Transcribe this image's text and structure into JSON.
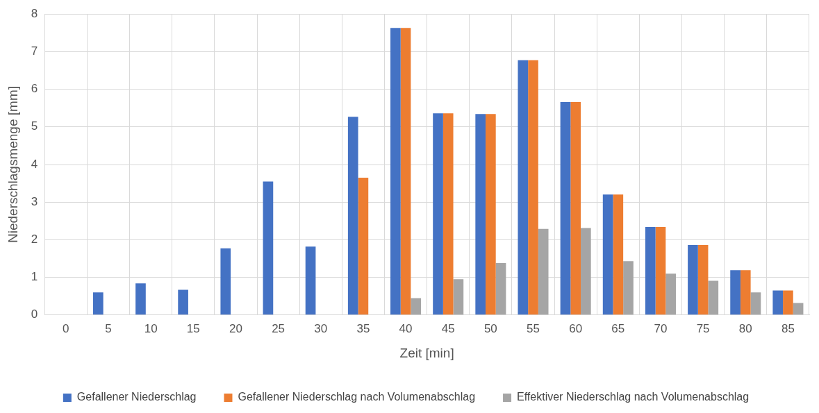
{
  "chart_data": {
    "type": "bar",
    "xlabel": "Zeit [min]",
    "ylabel": "Niederschlagsmenge [mm]",
    "categories": [
      "0",
      "5",
      "10",
      "15",
      "20",
      "25",
      "30",
      "35",
      "40",
      "45",
      "50",
      "55",
      "60",
      "65",
      "70",
      "75",
      "80",
      "85"
    ],
    "series": [
      {
        "name": "Gefallener Niederschlag",
        "color": "#4472c4",
        "values": [
          0,
          0.6,
          0.84,
          0.67,
          1.77,
          3.55,
          1.82,
          5.27,
          7.63,
          5.36,
          5.34,
          6.77,
          5.66,
          3.2,
          2.34,
          1.86,
          1.19,
          0.65
        ]
      },
      {
        "name": "Gefallener Niederschlag nach Volumenabschlag",
        "color": "#ed7d31",
        "values": [
          0,
          0,
          0,
          0,
          0,
          0,
          0,
          3.65,
          7.63,
          5.36,
          5.34,
          6.77,
          5.66,
          3.2,
          2.34,
          1.86,
          1.19,
          0.65
        ]
      },
      {
        "name": "Effektiver Niederschlag nach Volumenabschlag",
        "color": "#a5a5a5",
        "values": [
          0,
          0,
          0,
          0,
          0,
          0,
          0,
          0,
          0.45,
          0.95,
          1.38,
          2.29,
          2.31,
          1.43,
          1.1,
          0.91,
          0.6,
          0.32
        ]
      }
    ],
    "ylim": [
      0,
      8
    ],
    "yticks": [
      0,
      1,
      2,
      3,
      4,
      5,
      6,
      7,
      8
    ],
    "grid": true,
    "legend": "bottom"
  }
}
